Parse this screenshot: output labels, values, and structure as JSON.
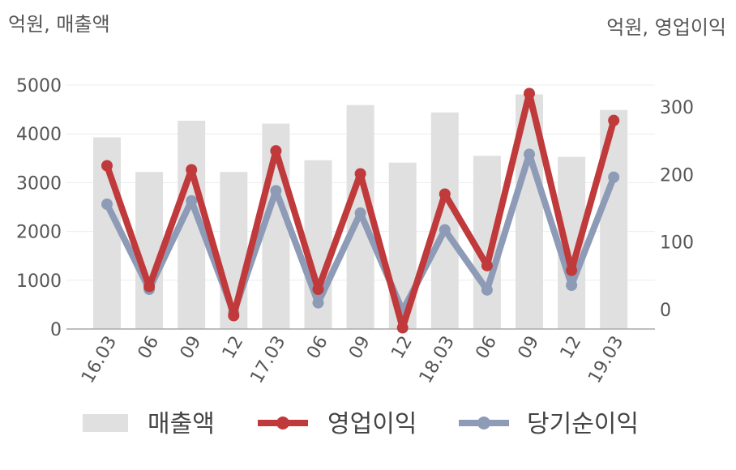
{
  "chart_data": {
    "type": "bar",
    "left_unit_label": "억원, 매출액",
    "right_unit_label": "억원, 영업이익",
    "categories": [
      "16.03",
      "06",
      "09",
      "12",
      "17.03",
      "06",
      "09",
      "12",
      "18.03",
      "06",
      "09",
      "12",
      "19.03"
    ],
    "y_left": {
      "ticks": [
        0,
        1000,
        2000,
        3000,
        4000,
        5000
      ],
      "tick_labels": [
        "0",
        "1000",
        "2000",
        "3000",
        "4000",
        "5000"
      ],
      "range": [
        0,
        5000
      ]
    },
    "y_right": {
      "ticks": [
        0,
        100,
        200,
        300
      ],
      "tick_labels": [
        "0",
        "100",
        "200",
        "300"
      ],
      "range": [
        -30,
        335
      ]
    },
    "grid": true,
    "legend_position": "bottom",
    "series": [
      {
        "name": "매출액",
        "kind": "bar",
        "axis": "left",
        "color": "#e0e0e0",
        "values": [
          3930,
          3220,
          4270,
          3220,
          4210,
          3460,
          4590,
          3410,
          4440,
          3550,
          4810,
          3530,
          4490
        ]
      },
      {
        "name": "영업이익",
        "kind": "line",
        "axis": "right",
        "color": "#c0393b",
        "values": [
          213,
          34,
          207,
          -9,
          235,
          30,
          201,
          -27,
          171,
          65,
          320,
          58,
          280
        ]
      },
      {
        "name": "당기순이익",
        "kind": "line",
        "axis": "right",
        "color": "#8e9bb7",
        "values": [
          156,
          30,
          161,
          -5,
          176,
          10,
          143,
          -2,
          118,
          29,
          230,
          36,
          196
        ]
      }
    ]
  }
}
